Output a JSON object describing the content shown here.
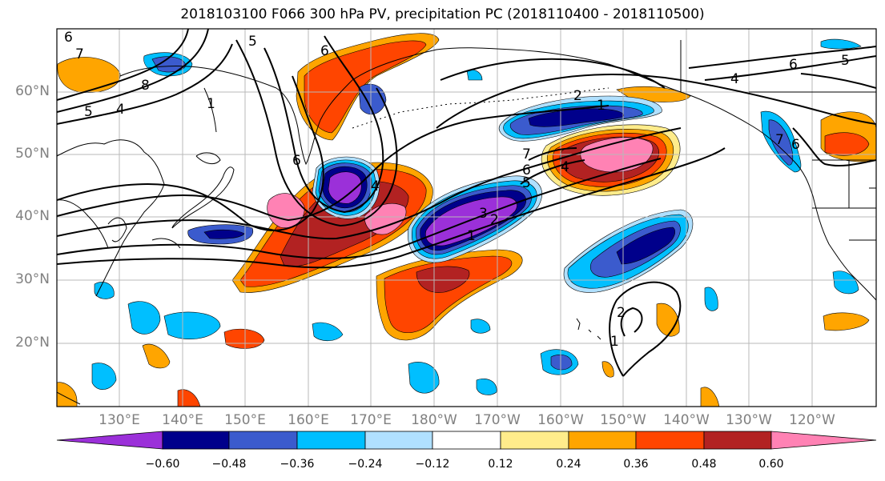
{
  "title": "2018103100 F066 300 hPa PV, precipitation PC (2018110400 - 2018110500)",
  "map": {
    "lat_labels": [
      "60°N",
      "50°N",
      "40°N",
      "30°N",
      "20°N"
    ],
    "lon_labels": [
      "130°E",
      "140°E",
      "150°E",
      "160°E",
      "170°E",
      "180°W",
      "170°W",
      "160°W",
      "150°W",
      "140°W",
      "130°W",
      "120°W"
    ],
    "contour_labels": [
      "7",
      "8",
      "6",
      "5",
      "4",
      "5",
      "1",
      "6",
      "6",
      "4",
      "3",
      "2",
      "1",
      "6",
      "5",
      "4",
      "7",
      "2",
      "1",
      "4",
      "6",
      "5",
      "6",
      "7",
      "2",
      "1"
    ]
  },
  "colorbar": {
    "ticks": [
      "−0.60",
      "−0.48",
      "−0.36",
      "−0.24",
      "−0.12",
      "0.12",
      "0.24",
      "0.36",
      "0.48",
      "0.60"
    ],
    "colors": [
      "#9b30d9",
      "#00008b",
      "#3b5bcd",
      "#00bfff",
      "#b0e0ff",
      "#ffffff",
      "#ffec8b",
      "#ffa500",
      "#ff4500",
      "#b22222",
      "#ff82b4"
    ]
  }
}
